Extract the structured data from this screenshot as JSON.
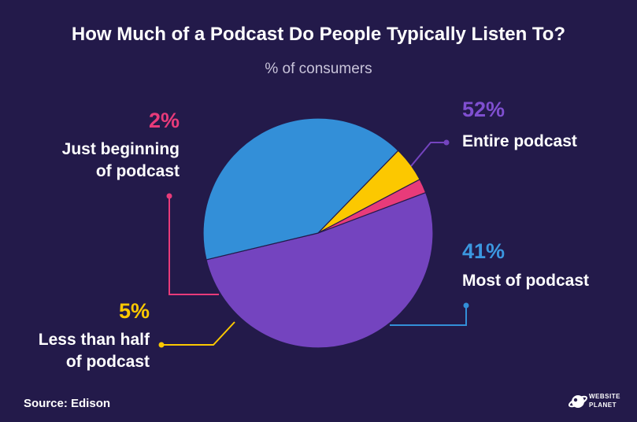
{
  "title": "How Much of a Podcast Do People Typically Listen To?",
  "subtitle": "% of consumers",
  "source": "Source: Edison",
  "logo": {
    "line1": "WEBSITE",
    "line2": "PLANET"
  },
  "labels": {
    "entire": {
      "pct": "52%",
      "line1": "Entire podcast"
    },
    "most": {
      "pct": "41%",
      "line1": "Most of podcast"
    },
    "less": {
      "pct": "5%",
      "line1": "Less than half",
      "line2": "of podcast"
    },
    "begin": {
      "pct": "2%",
      "line1": "Just beginning",
      "line2": "of podcast"
    }
  },
  "chart_data": {
    "type": "pie",
    "title": "How Much of a Podcast Do People Typically Listen To?",
    "subtitle": "% of consumers",
    "unit": "%",
    "slices": [
      {
        "label": "Entire podcast",
        "value": 52,
        "color": "#7444bf"
      },
      {
        "label": "Most of podcast",
        "value": 41,
        "color": "#338fd8"
      },
      {
        "label": "Less than half of podcast",
        "value": 5,
        "color": "#fcc800"
      },
      {
        "label": "Just beginning of podcast",
        "value": 2,
        "color": "#e83b7a"
      }
    ]
  }
}
